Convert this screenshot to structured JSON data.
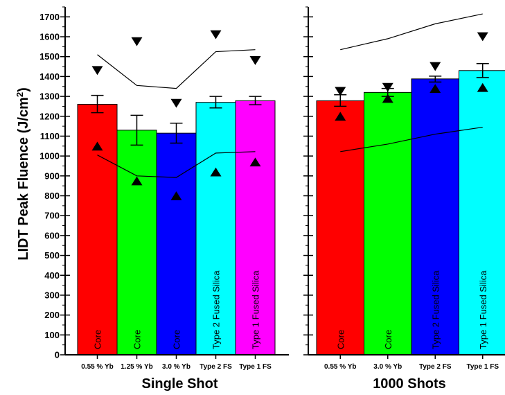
{
  "chart_data": {
    "type": "bar",
    "ylabel": "LIDT Peak Fluence (J/cm²)",
    "ylabel_text": "LIDT Peak Fluence (J/cm",
    "ylabel_sup": "2",
    "ylabel_close": ")",
    "ylim": [
      0,
      1750
    ],
    "yticks": [
      0,
      100,
      200,
      300,
      400,
      500,
      600,
      700,
      800,
      900,
      1000,
      1100,
      1200,
      1300,
      1400,
      1500,
      1600,
      1700
    ],
    "grid": false,
    "panels": [
      {
        "title": "Single Shot",
        "categories": [
          "0.55 % Yb",
          "1.25 % Yb",
          "3.0 % Yb",
          "Type 2 FS",
          "Type 1 FS"
        ],
        "bar_labels": [
          "Core",
          "Core",
          "Core",
          "Type 2 Fused Silica",
          "Type 1 Fused Silica"
        ],
        "values": [
          1260,
          1130,
          1115,
          1270,
          1278
        ],
        "err_low": [
          1218,
          1055,
          1065,
          1242,
          1258
        ],
        "err_high": [
          1305,
          1205,
          1165,
          1300,
          1300
        ],
        "max_markers": [
          1430,
          1575,
          1265,
          1610,
          1480
        ],
        "min_markers": [
          1050,
          875,
          800,
          920,
          970
        ],
        "upper_line": [
          1510,
          1355,
          1340,
          1525,
          1535
        ],
        "lower_line": [
          1005,
          900,
          892,
          1015,
          1022
        ],
        "colors": [
          "#ff0000",
          "#00ff00",
          "#0000ff",
          "#00ffff",
          "#ff00ff"
        ]
      },
      {
        "title": "1000 Shots",
        "categories": [
          "0.55 % Yb",
          "3.0 % Yb",
          "Type 2 FS",
          "Type 1 FS"
        ],
        "bar_labels": [
          "Core",
          "Core",
          "Type 2 Fused Silica",
          "Type 1 Fused Silica"
        ],
        "values": [
          1278,
          1320,
          1388,
          1430
        ],
        "err_low": [
          1250,
          1300,
          1372,
          1395
        ],
        "err_high": [
          1308,
          1340,
          1402,
          1465
        ],
        "max_markers": [
          1325,
          1345,
          1450,
          1600
        ],
        "min_markers": [
          1200,
          1290,
          1340,
          1345
        ],
        "upper_line": [
          1535,
          1590,
          1665,
          1715
        ],
        "lower_line": [
          1022,
          1060,
          1110,
          1145
        ],
        "colors": [
          "#ff0000",
          "#00ff00",
          "#0000ff",
          "#00ffff"
        ]
      }
    ]
  }
}
